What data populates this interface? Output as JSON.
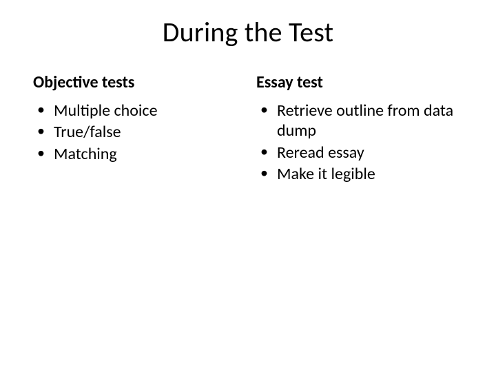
{
  "title": "During the Test",
  "left": {
    "heading": "Objective tests",
    "items": [
      "Multiple choice",
      "True/false",
      "Matching"
    ]
  },
  "right": {
    "heading": "Essay test",
    "items": [
      "Retrieve outline from data dump",
      "Reread essay",
      "Make it legible"
    ]
  },
  "style": {
    "background_color": "#ffffff",
    "text_color": "#000000",
    "title_fontsize": 40,
    "heading_fontsize": 24,
    "body_fontsize": 24,
    "font_family": "Calibri"
  }
}
